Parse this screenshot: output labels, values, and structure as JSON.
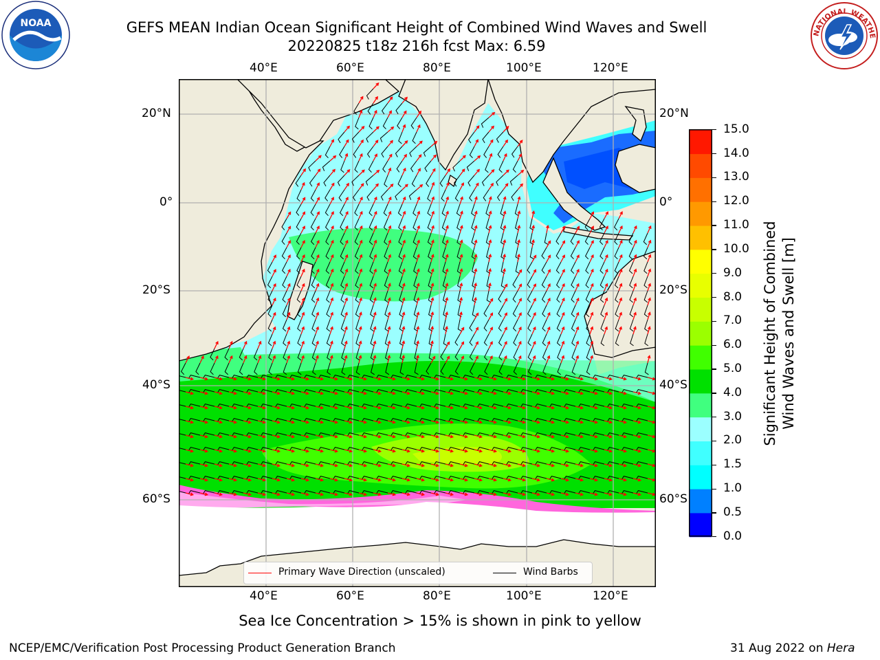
{
  "header": {
    "title_line1": "GEFS MEAN Indian Ocean Significant Height of Combined Wind Waves and Swell",
    "title_line2": "20220825 t18z 216h fcst   Max: 6.59"
  },
  "logos": {
    "noaa_text": "NOAA",
    "nws_text": "NATIONAL WEATHER SERVICE"
  },
  "map": {
    "lon_labels": [
      "40°E",
      "60°E",
      "80°E",
      "100°E",
      "120°E"
    ],
    "lat_labels_left": [
      "20°N",
      "0°",
      "20°S",
      "40°S",
      "60°S"
    ],
    "lat_labels_right": [
      "20°N",
      "0°",
      "20°S",
      "40°S",
      "60°S"
    ],
    "colors": {
      "land": "#efecdc",
      "grid": "#b0b0b0",
      "arrow": "#ff0000",
      "barb": "#000000"
    }
  },
  "legend": {
    "wave_direction_label": "Primary Wave Direction (unscaled)",
    "wind_barbs_label": "Wind Barbs",
    "wave_color": "#ff0000",
    "barb_color": "#000000"
  },
  "colorbar": {
    "label_line1": "Significant Height of Combined",
    "label_line2": "Wind Waves and Swell [m]",
    "ticks": [
      "0.0",
      "0.5",
      "1.0",
      "1.5",
      "2.0",
      "3.0",
      "4.0",
      "5.0",
      "6.0",
      "7.0",
      "8.0",
      "9.0",
      "10.0",
      "11.0",
      "12.0",
      "13.0",
      "14.0",
      "15.0"
    ],
    "colors": [
      "#0000ff",
      "#0080ff",
      "#00ffff",
      "#40ffff",
      "#9bffff",
      "#40ff7f",
      "#00e000",
      "#40ff00",
      "#9bff00",
      "#c8ff00",
      "#e8ff00",
      "#ffff00",
      "#ffc000",
      "#ff9900",
      "#ff7000",
      "#ff4a00",
      "#ff1800"
    ]
  },
  "note": "Sea Ice Concentration > 15% is shown in pink to yellow",
  "footer": {
    "left": "NCEP/EMC/Verification Post Processing Product Generation Branch",
    "right_date": "31 Aug 2022 on",
    "right_machine": "Hera"
  }
}
